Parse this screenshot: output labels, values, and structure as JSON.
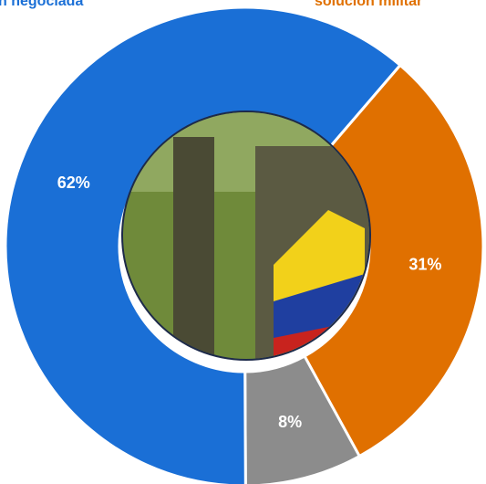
{
  "chart_data": {
    "type": "donut",
    "categories": [
      "n negociada",
      "solución militar",
      null
    ],
    "values": [
      62,
      31,
      8
    ],
    "value_labels": [
      "62%",
      "31%",
      "8%"
    ],
    "colors": [
      "#1a6fd6",
      "#e07000",
      "#8c8c8c"
    ]
  }
}
